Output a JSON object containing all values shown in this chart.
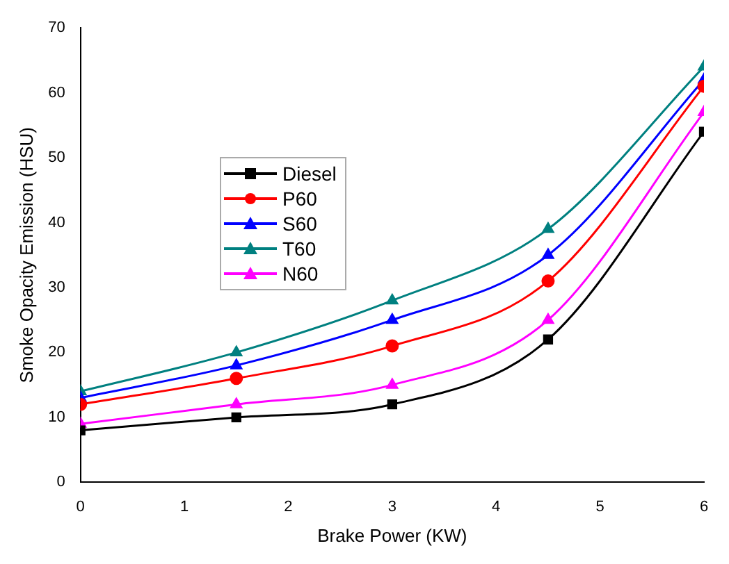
{
  "chart_data": {
    "type": "line",
    "xlabel": "Brake Power (KW)",
    "ylabel": "Smoke Opacity Emission (HSU)",
    "x": [
      0,
      1.5,
      3,
      4.5,
      6
    ],
    "series": [
      {
        "name": "Diesel",
        "color": "#000000",
        "marker": "square",
        "values": [
          8,
          10,
          12,
          22,
          54
        ]
      },
      {
        "name": "P60",
        "color": "#ff0000",
        "marker": "circle",
        "values": [
          12,
          16,
          21,
          31,
          61
        ]
      },
      {
        "name": "S60",
        "color": "#0000ff",
        "marker": "triangle",
        "values": [
          13,
          18,
          25,
          35,
          62
        ]
      },
      {
        "name": "T60",
        "color": "#008080",
        "marker": "triangle",
        "values": [
          14,
          20,
          28,
          39,
          64
        ]
      },
      {
        "name": "N60",
        "color": "#ff00ff",
        "marker": "triangle",
        "values": [
          9,
          12,
          15,
          25,
          57
        ]
      }
    ],
    "xlim": [
      0,
      6
    ],
    "xticks": [
      0,
      1,
      2,
      3,
      4,
      5,
      6
    ],
    "ylim": [
      0,
      70
    ],
    "yticks": [
      0,
      10,
      20,
      30,
      40,
      50,
      60,
      70
    ],
    "grid": false,
    "legend": "left"
  }
}
